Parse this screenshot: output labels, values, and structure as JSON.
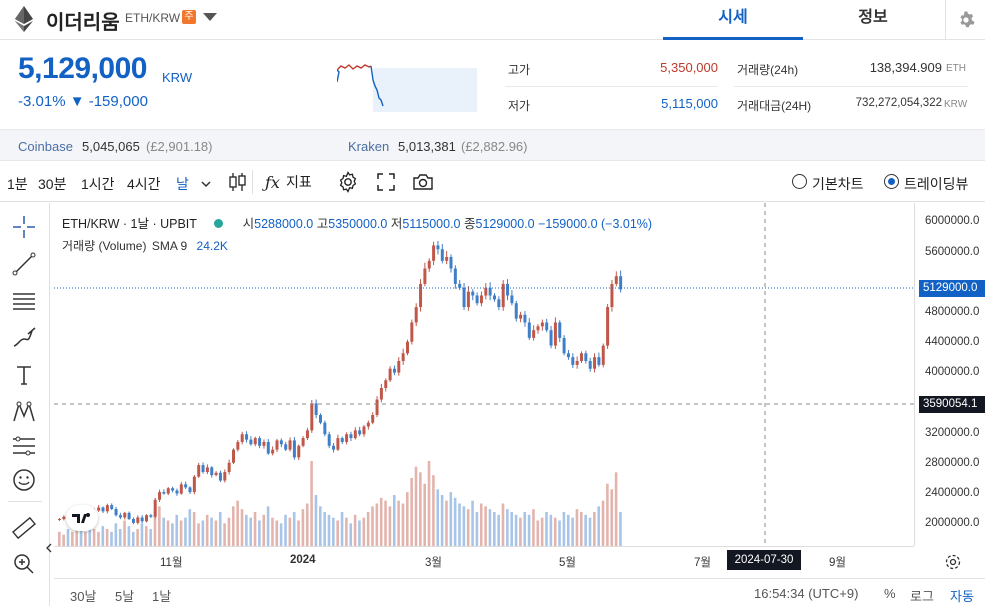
{
  "header": {
    "coin_name": "이더리움",
    "pair": "ETH/KRW",
    "badge": "주",
    "tabs": [
      {
        "label": "시세",
        "active": true
      },
      {
        "label": "정보",
        "active": false
      }
    ]
  },
  "price": {
    "current": "5,129,000",
    "unit": "KRW",
    "change": "-3.01% ▼ -159,000",
    "color": "#1261c4"
  },
  "stats": {
    "high_label": "고가",
    "high_value": "5,350,000",
    "low_label": "저가",
    "low_value": "5,115,000",
    "vol_label": "거래량(24h)",
    "vol_value": "138,394.909",
    "vol_unit": "ETH",
    "amount_label": "거래대금(24H)",
    "amount_value": "732,272,054,322",
    "amount_unit": "KRW"
  },
  "exchanges": [
    {
      "name": "Coinbase",
      "price": "5,045,065",
      "gbp": "(£2,901.18)"
    },
    {
      "name": "Kraken",
      "price": "5,013,381",
      "gbp": "(£2,882.96)"
    }
  ],
  "toolbar": {
    "timeframes": [
      "1분",
      "30분",
      "1시간",
      "4시간",
      "날"
    ],
    "indicator_label": "지표",
    "chart_options": [
      {
        "label": "기본차트",
        "selected": false
      },
      {
        "label": "트레이딩뷰",
        "selected": true
      }
    ]
  },
  "chart_legend": {
    "symbol": "ETH/KRW · 1날 · UPBIT",
    "open_label": "시",
    "open": "5288000.0",
    "high_label": "고",
    "high": "5350000.0",
    "low_label": "저",
    "low": "5115000.0",
    "close_label": "종",
    "close": "5129000.0",
    "change": "−159000.0 (−3.01%)",
    "volume_label": "거래량 (Volume)",
    "sma": "SMA 9",
    "volume_value": "24.2K"
  },
  "price_axis": [
    "6000000.0",
    "5600000.0",
    "5200000.0",
    "4800000.0",
    "4400000.0",
    "4000000.0",
    "3200000.0",
    "2800000.0",
    "2400000.0",
    "2000000.0"
  ],
  "price_tags": {
    "last": "5129000.0",
    "crosshair": "3590054.1"
  },
  "time_axis": [
    "11월",
    "2024",
    "3월",
    "5월",
    "7월",
    "2024-07-30",
    "9월"
  ],
  "bottom": {
    "ranges": [
      "30날",
      "5날",
      "1날"
    ],
    "clock": "16:54:34 (UTC+9)",
    "percent": "%",
    "log": "로그",
    "auto": "자동"
  },
  "colors": {
    "up": "#c0584a",
    "down": "#3f7fc9",
    "accent": "#1261c4",
    "high": "#c0392b"
  },
  "chart_data": {
    "type": "candlestick",
    "y_range": [
      1800000,
      6250000
    ],
    "closes": [
      2150000,
      2180000,
      2120000,
      2200000,
      2250000,
      2180000,
      2230000,
      2150000,
      2260000,
      2300000,
      2250000,
      2330000,
      2280000,
      2200000,
      2170000,
      2230000,
      2150000,
      2100000,
      2170000,
      2120000,
      2200000,
      2180000,
      2400000,
      2500000,
      2480000,
      2550000,
      2520000,
      2480000,
      2600000,
      2560000,
      2500000,
      2700000,
      2850000,
      2760000,
      2820000,
      2720000,
      2750000,
      2650000,
      2760000,
      2880000,
      3050000,
      3150000,
      3250000,
      3180000,
      3120000,
      3200000,
      3100000,
      3150000,
      3000000,
      3050000,
      3170000,
      3120000,
      3050000,
      3170000,
      2950000,
      3100000,
      3200000,
      3300000,
      3650000,
      3500000,
      3400000,
      3250000,
      3100000,
      3050000,
      3200000,
      3150000,
      3250000,
      3200000,
      3300000,
      3250000,
      3350000,
      3400000,
      3500000,
      3700000,
      3850000,
      3950000,
      4100000,
      4050000,
      4200000,
      4300000,
      4450000,
      4700000,
      4900000,
      5200000,
      5400000,
      5500000,
      5700000,
      5650000,
      5500000,
      5550000,
      5400000,
      5200000,
      5150000,
      4900000,
      5100000,
      5050000,
      4950000,
      5050000,
      5150000,
      5050000,
      5000000,
      4900000,
      5200000,
      5050000,
      4950000,
      4750000,
      4800000,
      4700000,
      4500000,
      4600000,
      4650000,
      4700000,
      4600000,
      4400000,
      4700000,
      4500000,
      4300000,
      4250000,
      4150000,
      4200000,
      4300000,
      4200000,
      4100000,
      4250000,
      4150000,
      4400000,
      4900000,
      5200000,
      5300000,
      5129000
    ],
    "volumes": [
      5,
      4,
      6,
      5,
      7,
      6,
      5,
      8,
      6,
      5,
      7,
      6,
      5,
      8,
      6,
      9,
      7,
      5,
      6,
      8,
      7,
      6,
      12,
      14,
      10,
      9,
      8,
      11,
      9,
      10,
      13,
      12,
      8,
      9,
      11,
      10,
      9,
      12,
      8,
      10,
      14,
      16,
      13,
      11,
      10,
      12,
      9,
      11,
      14,
      10,
      9,
      8,
      11,
      10,
      12,
      9,
      13,
      15,
      30,
      18,
      14,
      12,
      11,
      10,
      9,
      12,
      10,
      8,
      11,
      9,
      10,
      12,
      14,
      15,
      17,
      16,
      14,
      18,
      16,
      15,
      19,
      24,
      28,
      26,
      22,
      30,
      25,
      20,
      18,
      16,
      19,
      17,
      15,
      14,
      13,
      16,
      12,
      15,
      14,
      13,
      12,
      11,
      15,
      13,
      12,
      11,
      10,
      12,
      11,
      13,
      9,
      10,
      12,
      11,
      10,
      9,
      12,
      11,
      10,
      13,
      12,
      11,
      10,
      12,
      14,
      16,
      22,
      20,
      26,
      12
    ]
  }
}
